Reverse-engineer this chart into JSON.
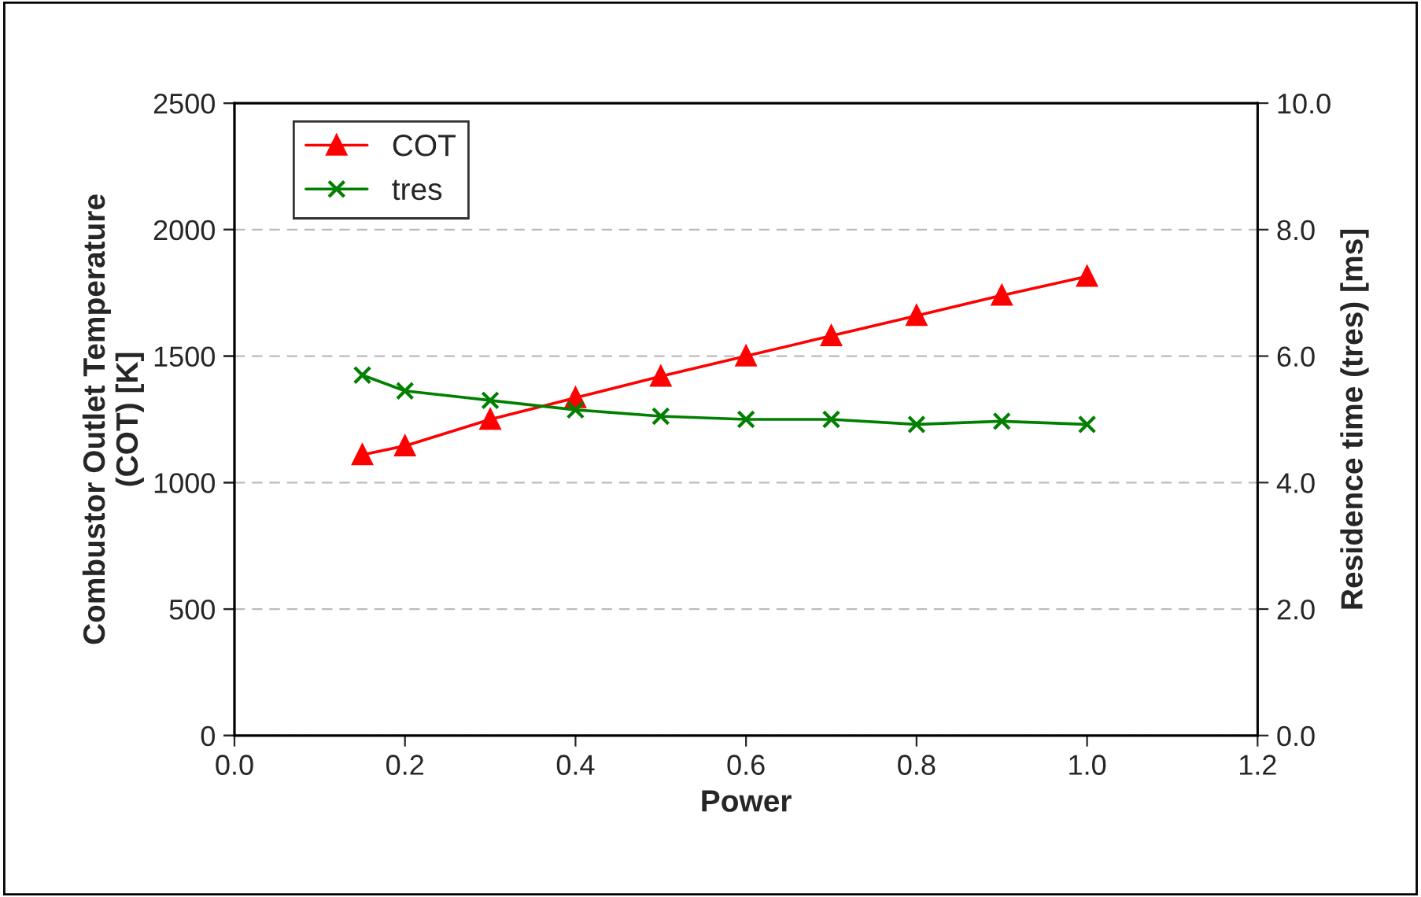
{
  "chart_data": {
    "type": "line",
    "xlabel": "Power",
    "ylabel": "Combustor Outlet Temperature\n(COT) [K]",
    "y2label": "Residence time (tres) [ms]",
    "x": [
      0.15,
      0.2,
      0.3,
      0.4,
      0.5,
      0.6,
      0.7,
      0.8,
      0.9,
      1.0
    ],
    "series": [
      {
        "name": "COT",
        "color": "#ff0000",
        "marker": "triangle",
        "values": [
          1110,
          1145,
          1250,
          1335,
          1420,
          1500,
          1580,
          1660,
          1740,
          1815
        ]
      },
      {
        "name": "tres",
        "color": "#008000",
        "marker": "cross",
        "axis": "y2",
        "values": [
          5.7,
          5.45,
          5.3,
          5.15,
          5.05,
          5.0,
          5.0,
          4.92,
          4.97,
          4.92
        ]
      }
    ],
    "xlim": [
      0,
      1.2
    ],
    "xticks": [
      {
        "value": 0,
        "label": "0.0"
      },
      {
        "value": 0.2,
        "label": "0.2"
      },
      {
        "value": 0.4,
        "label": "0.4"
      },
      {
        "value": 0.6,
        "label": "0.6"
      },
      {
        "value": 0.8,
        "label": "0.8"
      },
      {
        "value": 1.0,
        "label": "1.0"
      },
      {
        "value": 1.2,
        "label": "1.2"
      }
    ],
    "ylim": [
      0,
      2500
    ],
    "yticks": [
      0,
      500,
      1000,
      1500,
      2000,
      2500
    ],
    "y2lim": [
      0,
      10
    ],
    "y2ticks": [
      {
        "value": 0,
        "label": "0.0"
      },
      {
        "value": 2,
        "label": "2.0"
      },
      {
        "value": 4,
        "label": "4.0"
      },
      {
        "value": 6,
        "label": "6.0"
      },
      {
        "value": 8,
        "label": "8.0"
      },
      {
        "value": 10,
        "label": "10.0"
      }
    ],
    "grid": "y",
    "legend": "top left",
    "line_style": "solid"
  }
}
